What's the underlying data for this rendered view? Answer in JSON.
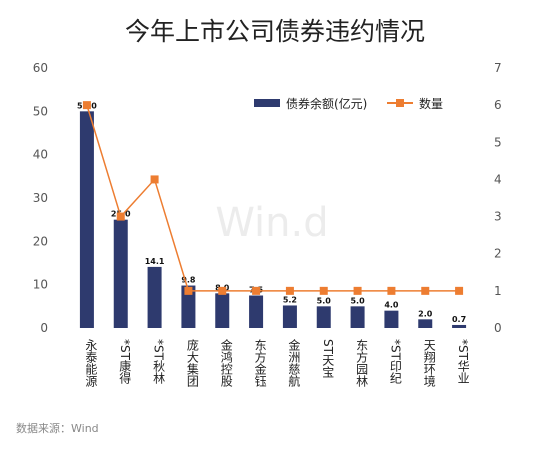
{
  "chart_data": {
    "type": "bar+line",
    "title": "今年上市公司债券违约情况",
    "categories": [
      "永泰能源",
      "*ST康得",
      "*ST秋林",
      "庞大集团",
      "金鸿控股",
      "东方金钰",
      "金洲慈航",
      "ST天宝",
      "东方园林",
      "*ST印纪",
      "天翔环境",
      "*ST华业"
    ],
    "series": [
      {
        "name": "债券余额(亿元)",
        "type": "bar",
        "axis": "left",
        "color": "#2e3a6e",
        "values": [
          50.0,
          25.0,
          14.1,
          9.8,
          8.0,
          7.5,
          5.2,
          5.0,
          5.0,
          4.0,
          2.0,
          0.7
        ],
        "labels": [
          "50.0",
          "25.0",
          "14.1",
          "9.8",
          "8.0",
          "7.5",
          "5.2",
          "5.0",
          "5.0",
          "4.0",
          "2.0",
          "0.7"
        ]
      },
      {
        "name": "数量",
        "type": "line",
        "axis": "right",
        "color": "#ed7d31",
        "values": [
          6,
          3,
          4,
          1,
          1,
          1,
          1,
          1,
          1,
          1,
          1,
          1
        ]
      }
    ],
    "y_left": {
      "ylim": [
        0,
        60
      ],
      "ticks": [
        "0",
        "10",
        "20",
        "30",
        "40",
        "50",
        "60"
      ]
    },
    "y_right": {
      "ylim": [
        0,
        7
      ],
      "ticks": [
        "0",
        "1",
        "2",
        "3",
        "4",
        "5",
        "6",
        "7"
      ]
    },
    "legend_position": "top-right",
    "grid": false
  },
  "watermark": "Win.d",
  "source_label": "数据来源：Wind"
}
